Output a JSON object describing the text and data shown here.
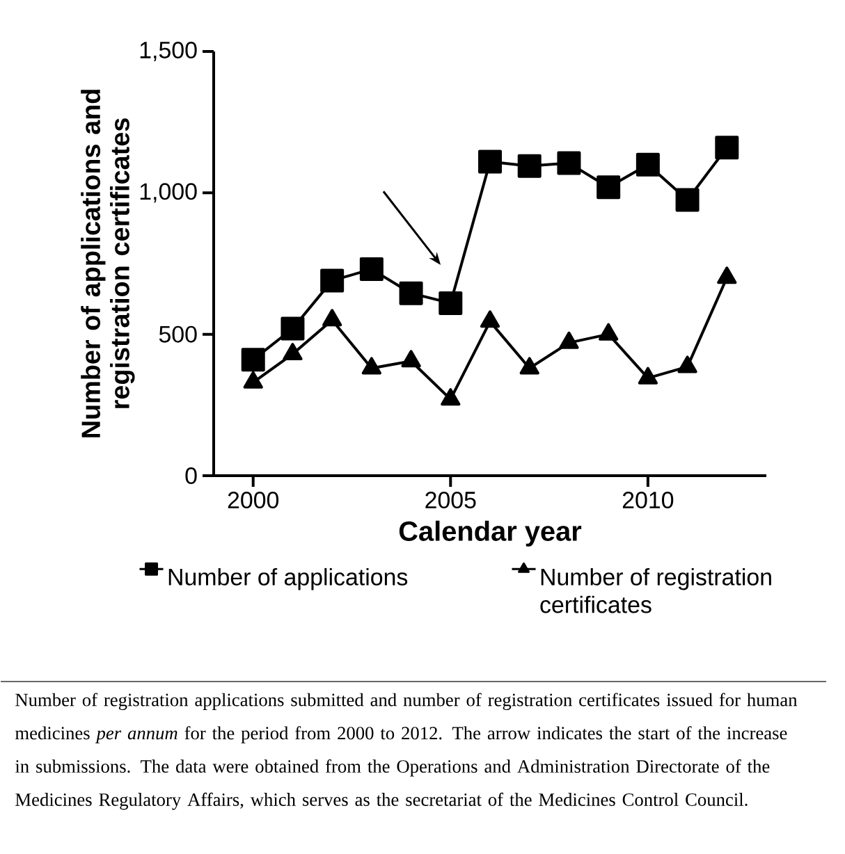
{
  "chart_data": {
    "type": "line",
    "ylabel": "Number of applications and registration certificates",
    "xlabel": "Calendar year",
    "x": [
      2000,
      2001,
      2002,
      2003,
      2004,
      2005,
      2006,
      2007,
      2008,
      2009,
      2010,
      2011,
      2012
    ],
    "series": [
      {
        "name": "Number of applications",
        "color": "#000000",
        "marker": "square",
        "values": [
          410,
          520,
          690,
          730,
          645,
          610,
          1110,
          1095,
          1105,
          1020,
          1100,
          975,
          1160
        ]
      },
      {
        "name": "Number of registration certificates",
        "color": "#000000",
        "marker": "triangle",
        "values": [
          330,
          430,
          550,
          380,
          405,
          270,
          545,
          380,
          470,
          500,
          345,
          385,
          700
        ]
      }
    ],
    "xlim": [
      1999,
      2013
    ],
    "ylim": [
      0,
      1500
    ],
    "xticks": [
      2000,
      2005,
      2010
    ],
    "yticks": [
      0,
      500,
      {
        "value": 1000,
        "label": "1,000"
      },
      {
        "value": 1500,
        "label": "1,500"
      }
    ],
    "legend": "bottom",
    "line_style": "solid",
    "annotations": [
      "Number of registration applications submitted and number of registration certificates issued for human medicines *per annum* for the period from 2000 to 2012. The arrow indicates the start of the increase in submissions. The data were obtained from the Operations and Administration Directorate of the Medicines Regulatory Affairs, which serves as the secretariat of the Medicines Control Council."
    ]
  }
}
